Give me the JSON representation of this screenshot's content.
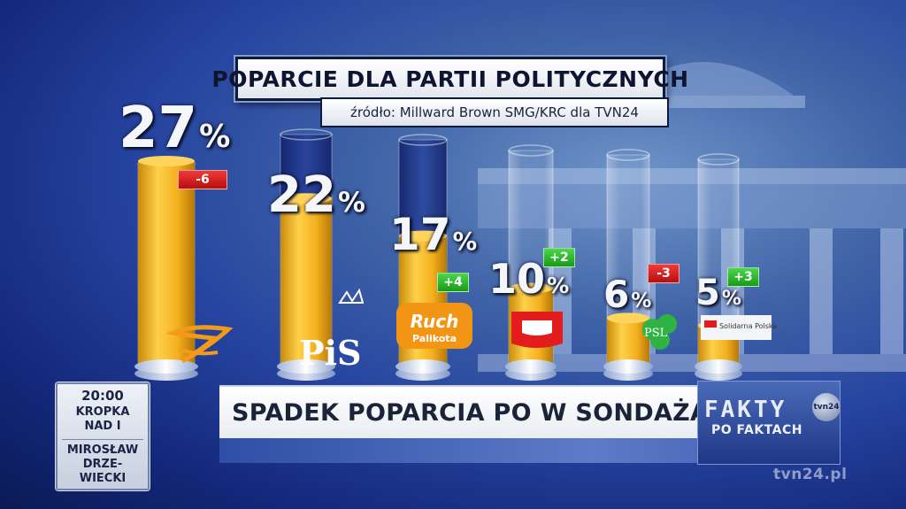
{
  "chart_data": {
    "type": "bar",
    "title": "POPARCIE DLA PARTII POLITYCZNYCH",
    "subtitle": "źródło: Millward Brown SMG/KRC dla TVN24",
    "categories": [
      "PO",
      "PiS",
      "Ruch Palikota",
      "SLD",
      "PSL",
      "Solidarna Polska"
    ],
    "values": [
      27,
      22,
      17,
      10,
      6,
      5
    ],
    "value_labels": [
      "27",
      "22",
      "17",
      "10",
      "6",
      "5"
    ],
    "percent_sign": "%",
    "changes": [
      "-6",
      "",
      "+4",
      "+2",
      "-3",
      "+3"
    ],
    "change_signs": [
      "neg",
      "none",
      "pos",
      "pos",
      "neg",
      "pos"
    ],
    "ylim": [
      0,
      30
    ],
    "grid": false,
    "bar_color": "#f0b21c",
    "tube_color": "#c9d6ef"
  },
  "logos": {
    "pis": "PiS",
    "ruch_top": "Ruch",
    "ruch_bottom": "Palikota",
    "psl": "PSL",
    "solidarna": "Solidarna Polska"
  },
  "lower_third": {
    "headline": "SPADEK POPARCIA PO W SONDAŻACH",
    "brand": "FAKTY",
    "brand_sub": "PO FAKTACH",
    "channel": "tvn24",
    "watermark": "tvn24.pl"
  },
  "schedule": {
    "time": "20:00",
    "line1": "KROPKA",
    "line2": "NAD I",
    "line3": "MIROSŁAW",
    "line4": "DRZE-",
    "line5": "WIECKI"
  }
}
